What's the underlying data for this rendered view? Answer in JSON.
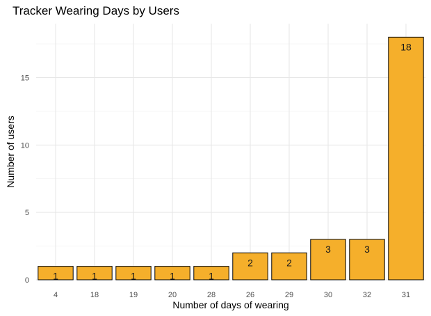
{
  "chart_data": {
    "type": "bar",
    "title": "Tracker Wearing Days by Users",
    "xlabel": "Number of days of wearing",
    "ylabel": "Number of users",
    "categories": [
      "4",
      "18",
      "19",
      "20",
      "28",
      "26",
      "29",
      "30",
      "32",
      "31"
    ],
    "values": [
      1,
      1,
      1,
      1,
      1,
      2,
      2,
      3,
      3,
      18
    ],
    "ylim": [
      0,
      19
    ],
    "yticks": [
      0,
      5,
      10,
      15
    ],
    "bar_color": "#F5AF2B",
    "bar_edge_color": "#000000",
    "grid": true,
    "data_labels": true
  }
}
